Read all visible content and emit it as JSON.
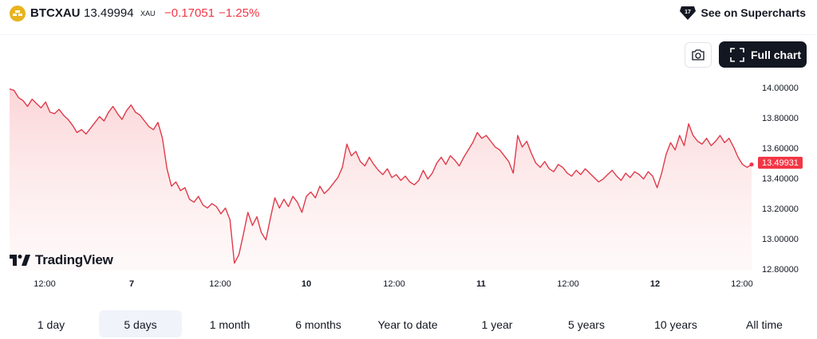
{
  "header": {
    "symbol": "BTCXAU",
    "price": "13.49994",
    "currency": "XAU",
    "change": "−0.17051",
    "change_pct": "−1.25%",
    "supercharts_label": "See on Supercharts"
  },
  "toolbar": {
    "full_chart_label": "Full chart"
  },
  "watermark": "TradingView",
  "colors": {
    "line": "#e03a4a",
    "negative": "#f23645",
    "area_top": "#fbd3d6"
  },
  "chart_data": {
    "type": "area",
    "x_ticks": [
      "12:00",
      "7",
      "12:00",
      "10",
      "12:00",
      "11",
      "12:00",
      "12",
      "12:00"
    ],
    "y_ticks": [
      "14.00000",
      "13.80000",
      "13.60000",
      "13.40000",
      "13.20000",
      "13.00000",
      "12.80000"
    ],
    "ylim": [
      12.78,
      14.03
    ],
    "last_value": "13.49931",
    "values": [
      14.02,
      14.01,
      13.96,
      13.94,
      13.9,
      13.95,
      13.92,
      13.89,
      13.93,
      13.86,
      13.85,
      13.88,
      13.84,
      13.81,
      13.77,
      13.72,
      13.74,
      13.71,
      13.75,
      13.79,
      13.83,
      13.8,
      13.86,
      13.9,
      13.85,
      13.81,
      13.87,
      13.91,
      13.86,
      13.84,
      13.8,
      13.76,
      13.74,
      13.79,
      13.68,
      13.47,
      13.35,
      13.38,
      13.32,
      13.34,
      13.26,
      13.24,
      13.28,
      13.22,
      13.2,
      13.23,
      13.21,
      13.16,
      13.2,
      13.12,
      12.82,
      12.88,
      13.02,
      13.17,
      13.08,
      13.14,
      13.03,
      12.98,
      13.13,
      13.27,
      13.2,
      13.26,
      13.21,
      13.28,
      13.24,
      13.17,
      13.28,
      13.31,
      13.27,
      13.35,
      13.3,
      13.33,
      13.37,
      13.41,
      13.48,
      13.64,
      13.56,
      13.59,
      13.52,
      13.49,
      13.55,
      13.5,
      13.46,
      13.43,
      13.47,
      13.41,
      13.43,
      13.39,
      13.42,
      13.38,
      13.36,
      13.39,
      13.46,
      13.4,
      13.44,
      13.51,
      13.55,
      13.5,
      13.56,
      13.53,
      13.49,
      13.55,
      13.6,
      13.65,
      13.72,
      13.68,
      13.7,
      13.66,
      13.62,
      13.6,
      13.56,
      13.52,
      13.44,
      13.7,
      13.62,
      13.66,
      13.58,
      13.51,
      13.48,
      13.52,
      13.47,
      13.45,
      13.5,
      13.48,
      13.44,
      13.42,
      13.46,
      13.43,
      13.47,
      13.44,
      13.41,
      13.38,
      13.4,
      13.43,
      13.46,
      13.42,
      13.39,
      13.44,
      13.41,
      13.45,
      13.43,
      13.4,
      13.45,
      13.42,
      13.34,
      13.44,
      13.57,
      13.65,
      13.6,
      13.7,
      13.63,
      13.78,
      13.7,
      13.66,
      13.64,
      13.68,
      13.63,
      13.66,
      13.7,
      13.65,
      13.68,
      13.62,
      13.55,
      13.5,
      13.48,
      13.5
    ]
  },
  "ranges": [
    "1 day",
    "5 days",
    "1 month",
    "6 months",
    "Year to date",
    "1 year",
    "5 years",
    "10 years",
    "All time"
  ],
  "active_range": "5 days"
}
